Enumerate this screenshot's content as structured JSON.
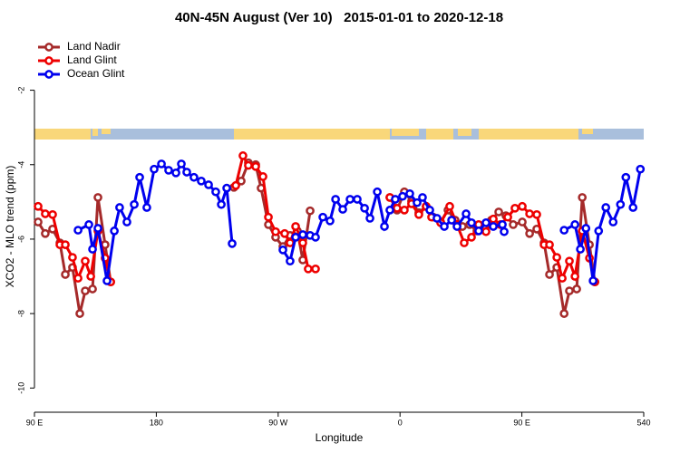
{
  "chart_data": {
    "type": "line",
    "title": "40N-45N August (Ver 10)   2015-01-01 to 2020-12-18",
    "x_label": "Longitude",
    "y_label": "XCO2 - MLO trend (ppm)",
    "xlim": [
      90,
      540
    ],
    "ylim": [
      -10.65,
      -0.55
    ],
    "xticks": [
      {
        "value": 90,
        "label": "90 E"
      },
      180,
      {
        "value": 270,
        "label": "90 W"
      },
      {
        "value": 360,
        "label": "0"
      },
      {
        "value": 450,
        "label": "90 E"
      },
      540
    ],
    "yticks": [
      -2,
      -4,
      -6,
      -8,
      -10
    ],
    "legend": "upper left",
    "series": [
      {
        "name": "Land Nadir",
        "color": "#a52a2a",
        "x": [
          92.7,
          98,
          103.4,
          108.8,
          112.8,
          118.1,
          123.5,
          127.5,
          132.9,
          136.9,
          142.2,
          146.3,
          null,
          237.3,
          242.7,
          248,
          253.4,
          257.4,
          262.8,
          268.1,
          273.5,
          278.8,
          284.2,
          288.2,
          293.6,
          null,
          352.5,
          357.8,
          363.2,
          368.5,
          373.9,
          379.3,
          384.6,
          390,
          395.4,
          400.7,
          406.1,
          411.4,
          416.8,
          422.1,
          427.5,
          432.9,
          438.2,
          443.6,
          450.3,
          455.7,
          461,
          466.4,
          470.4,
          475.8,
          481.2,
          485.1,
          490.5,
          494.6,
          499.9,
          503.9
        ],
        "values": [
          -5.54,
          -5.85,
          -5.73,
          -6.1,
          -6.95,
          -6.76,
          -8.0,
          -7.39,
          -7.34,
          -4.88,
          -6.15,
          -7.15,
          null,
          -4.61,
          -4.44,
          -3.95,
          -4.0,
          -4.63,
          -5.61,
          -5.95,
          -6.2,
          -5.9,
          -5.78,
          -6.56,
          -5.24,
          null,
          -4.88,
          -5.22,
          -4.73,
          -4.98,
          -5.29,
          -5.12,
          -5.41,
          -5.54,
          -5.22,
          -5.49,
          -5.66,
          -5.61,
          -5.78,
          -5.71,
          -5.49,
          -5.27,
          -5.37,
          -5.61,
          -5.54,
          -5.85,
          -5.73,
          -6.1,
          -6.95,
          -6.76,
          -8.0,
          -7.39,
          -7.34,
          -4.88,
          -6.15,
          -7.15
        ]
      },
      {
        "name": "Land Glint",
        "color": "#ee0000",
        "x": [
          92.7,
          98,
          103.4,
          108.8,
          112.8,
          118.1,
          122.2,
          127.5,
          131.6,
          136.9,
          142.2,
          146.3,
          null,
          238.7,
          244,
          248,
          253.4,
          258.8,
          262.8,
          268.1,
          274.8,
          278.8,
          282.9,
          288.2,
          292.2,
          297.6,
          null,
          352.5,
          357.8,
          363.2,
          368.5,
          373.9,
          379.3,
          383.3,
          390,
          396.7,
          402.1,
          407.4,
          412.8,
          418.1,
          423.5,
          428.9,
          434.2,
          439.6,
          444.9,
          450.3,
          455.7,
          461,
          466.4,
          470.4,
          475.8,
          479.8,
          485.1,
          489.2,
          494.6,
          499.9,
          503.9
        ],
        "values": [
          -5.12,
          -5.32,
          -5.34,
          -6.15,
          -6.15,
          -6.49,
          -7.05,
          -6.59,
          -7.0,
          -5.78,
          -6.51,
          -7.15,
          null,
          -4.56,
          -3.76,
          -4.02,
          -4.05,
          -4.32,
          -5.41,
          -5.8,
          -5.85,
          -6.1,
          -5.66,
          -6.1,
          -6.8,
          -6.8,
          null,
          -4.88,
          -5.17,
          -5.22,
          -5.05,
          -5.34,
          -5.12,
          -5.41,
          -5.56,
          -5.12,
          -5.61,
          -6.1,
          -5.95,
          -5.61,
          -5.8,
          -5.46,
          -5.61,
          -5.41,
          -5.17,
          -5.12,
          -5.32,
          -5.34,
          -6.15,
          -6.15,
          -6.49,
          -7.05,
          -6.59,
          -7.0,
          -5.78,
          -6.51,
          -7.15
        ]
      },
      {
        "name": "Ocean Glint",
        "color": "#0000ee",
        "x": [
          122.2,
          130.2,
          132.9,
          136.9,
          143.6,
          149,
          152.9,
          158.3,
          163.7,
          167.7,
          173,
          178.4,
          183.8,
          189.1,
          194.5,
          198.5,
          202.5,
          207.8,
          213.2,
          218.6,
          223.9,
          228,
          232,
          236,
          null,
          273.5,
          278.8,
          282.9,
          288.2,
          293.6,
          297.6,
          303,
          308.3,
          312.4,
          317.7,
          323.1,
          328.4,
          333.8,
          337.8,
          343.2,
          348.5,
          352.5,
          356.5,
          361.9,
          367.2,
          372.6,
          376.6,
          382,
          387.3,
          392.7,
          398.1,
          402.1,
          408.8,
          412.8,
          418.1,
          423.5,
          428.9,
          435.6,
          436.9,
          null,
          481.2,
          489.2,
          493.2,
          497.3,
          502.6,
          506.7,
          512,
          517.4,
          522.8,
          526.8,
          532.1,
          537.5
        ],
        "values": [
          -5.76,
          -5.61,
          -6.27,
          -5.71,
          -7.12,
          -5.78,
          -5.15,
          -5.54,
          -5.07,
          -4.34,
          -5.15,
          -4.12,
          -3.98,
          -4.15,
          -4.22,
          -3.98,
          -4.2,
          -4.34,
          -4.44,
          -4.54,
          -4.73,
          -5.07,
          -4.63,
          -6.12,
          null,
          -6.29,
          -6.59,
          -5.95,
          -5.88,
          -5.9,
          -5.95,
          -5.41,
          -5.51,
          -4.93,
          -5.2,
          -4.93,
          -4.93,
          -5.17,
          -5.44,
          -4.73,
          -5.66,
          -5.22,
          -4.93,
          -4.85,
          -4.78,
          -5.02,
          -4.88,
          -5.22,
          -5.44,
          -5.66,
          -5.49,
          -5.66,
          -5.32,
          -5.56,
          -5.78,
          -5.56,
          -5.66,
          -5.61,
          -5.8,
          null,
          -5.76,
          -5.61,
          -6.27,
          -5.71,
          -7.12,
          -5.78,
          -5.15,
          -5.54,
          -5.07,
          -4.34,
          -5.15,
          -4.12
        ]
      }
    ]
  }
}
